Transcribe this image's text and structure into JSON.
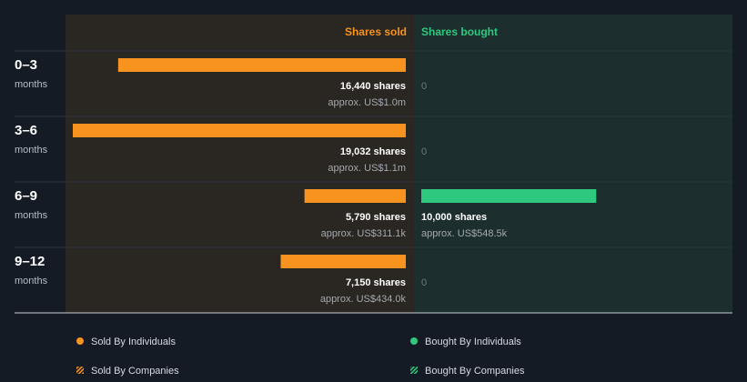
{
  "chart_data": {
    "type": "bar",
    "orientation": "horizontal-diverging",
    "headers": {
      "sold": "Shares sold",
      "bought": "Shares bought"
    },
    "periods": [
      {
        "label": "0–3",
        "sublabel": "months",
        "sold_shares": 16440,
        "sold_text": "16,440 shares",
        "sold_value": "approx. US$1.0m",
        "bought_shares": 0,
        "bought_text": "0",
        "bought_value": ""
      },
      {
        "label": "3–6",
        "sublabel": "months",
        "sold_shares": 19032,
        "sold_text": "19,032 shares",
        "sold_value": "approx. US$1.1m",
        "bought_shares": 0,
        "bought_text": "0",
        "bought_value": ""
      },
      {
        "label": "6–9",
        "sublabel": "months",
        "sold_shares": 5790,
        "sold_text": "5,790 shares",
        "sold_value": "approx. US$311.1k",
        "bought_shares": 10000,
        "bought_text": "10,000 shares",
        "bought_value": "approx. US$548.5k"
      },
      {
        "label": "9–12",
        "sublabel": "months",
        "sold_shares": 7150,
        "sold_text": "7,150 shares",
        "sold_value": "approx. US$434.0k",
        "bought_shares": 0,
        "bought_text": "0",
        "bought_value": ""
      }
    ],
    "scale_max_shares": 19032,
    "colors": {
      "sold": "#f7931e",
      "bought": "#2ec97e",
      "sold_bg": "#2a2622",
      "bought_bg": "#1c2e2e"
    }
  },
  "legend": [
    {
      "label": "Sold By Individuals",
      "color": "#f7931e",
      "style": "dot"
    },
    {
      "label": "Bought By Individuals",
      "color": "#2ec97e",
      "style": "dot"
    },
    {
      "label": "Sold By Companies",
      "color": "#f7931e",
      "style": "hatch"
    },
    {
      "label": "Bought By Companies",
      "color": "#2ec97e",
      "style": "hatch"
    }
  ]
}
